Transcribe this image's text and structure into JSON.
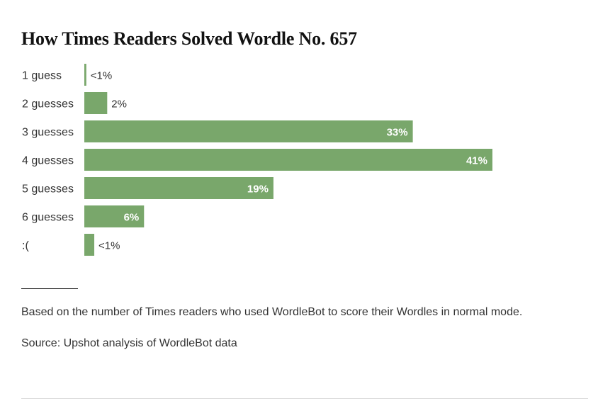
{
  "title": "How Times Readers Solved Wordle No. 657",
  "chart_data": {
    "type": "bar",
    "orientation": "horizontal",
    "title": "How Times Readers Solved Wordle No. 657",
    "categories": [
      "1 guess",
      "2 guesses",
      "3 guesses",
      "4 guesses",
      "5 guesses",
      "6 guesses",
      ":("
    ],
    "values": [
      0.2,
      2.3,
      33,
      41,
      19,
      6,
      1
    ],
    "value_labels": [
      "<1%",
      "2%",
      "33%",
      "41%",
      "19%",
      "6%",
      "<1%"
    ],
    "xlim": [
      0,
      41
    ],
    "grid": false,
    "legend": "none",
    "bar_color": "#79a76b"
  },
  "note": "Based on the number of Times readers who used WordleBot to score their Wordles in normal mode.",
  "source": "Source: Upshot analysis of WordleBot data"
}
